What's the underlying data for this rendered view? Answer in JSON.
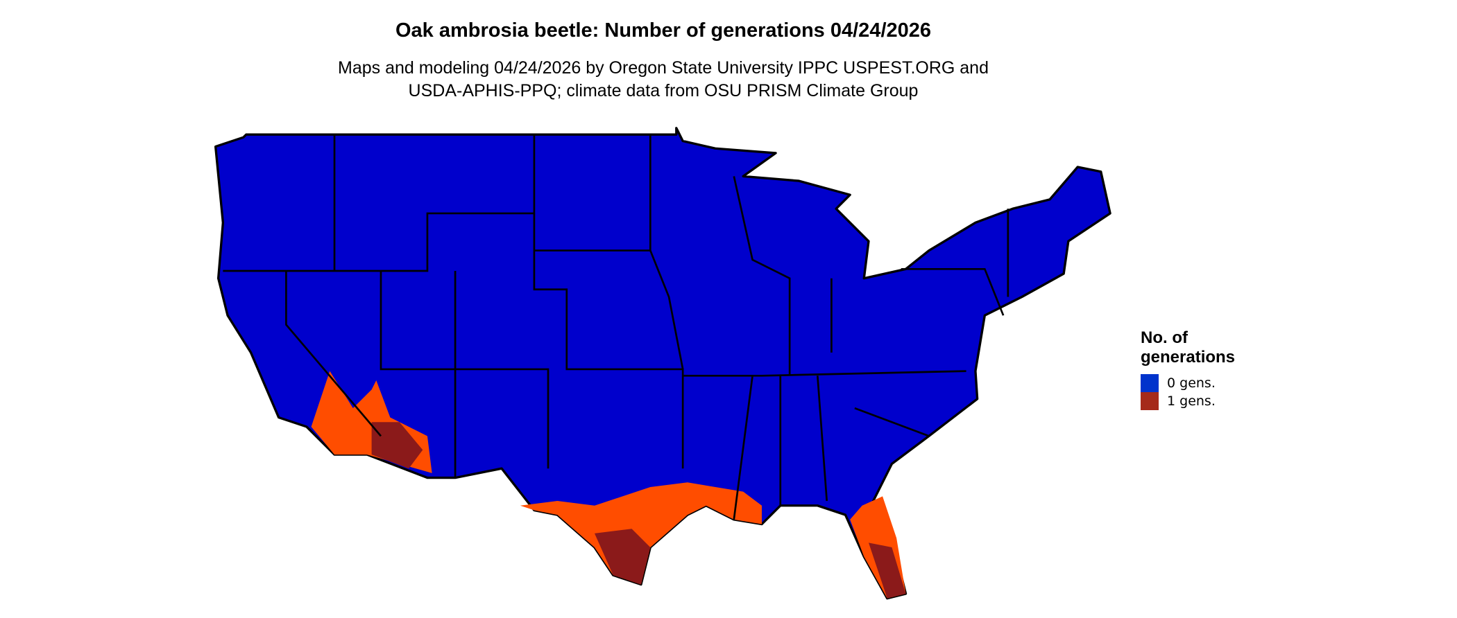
{
  "title": "Oak ambrosia beetle: Number of generations 04/24/2026",
  "subtitle_line1": "Maps and modeling 04/24/2026 by Oregon State University IPPC USPEST.ORG and",
  "subtitle_line2": "USDA-APHIS-PPQ; climate data from OSU PRISM Climate Group",
  "legend": {
    "title_line1": "No. of",
    "title_line2": "generations",
    "items": [
      {
        "label": "0 gens.",
        "color": "#0033cc"
      },
      {
        "label": "1 gens.",
        "color": "#a52a1a"
      }
    ]
  },
  "colors": {
    "land_zero": "#0000cc",
    "one_gen_light": "#ff4d00",
    "one_gen_dark": "#8b1a1a",
    "border": "#000000"
  }
}
